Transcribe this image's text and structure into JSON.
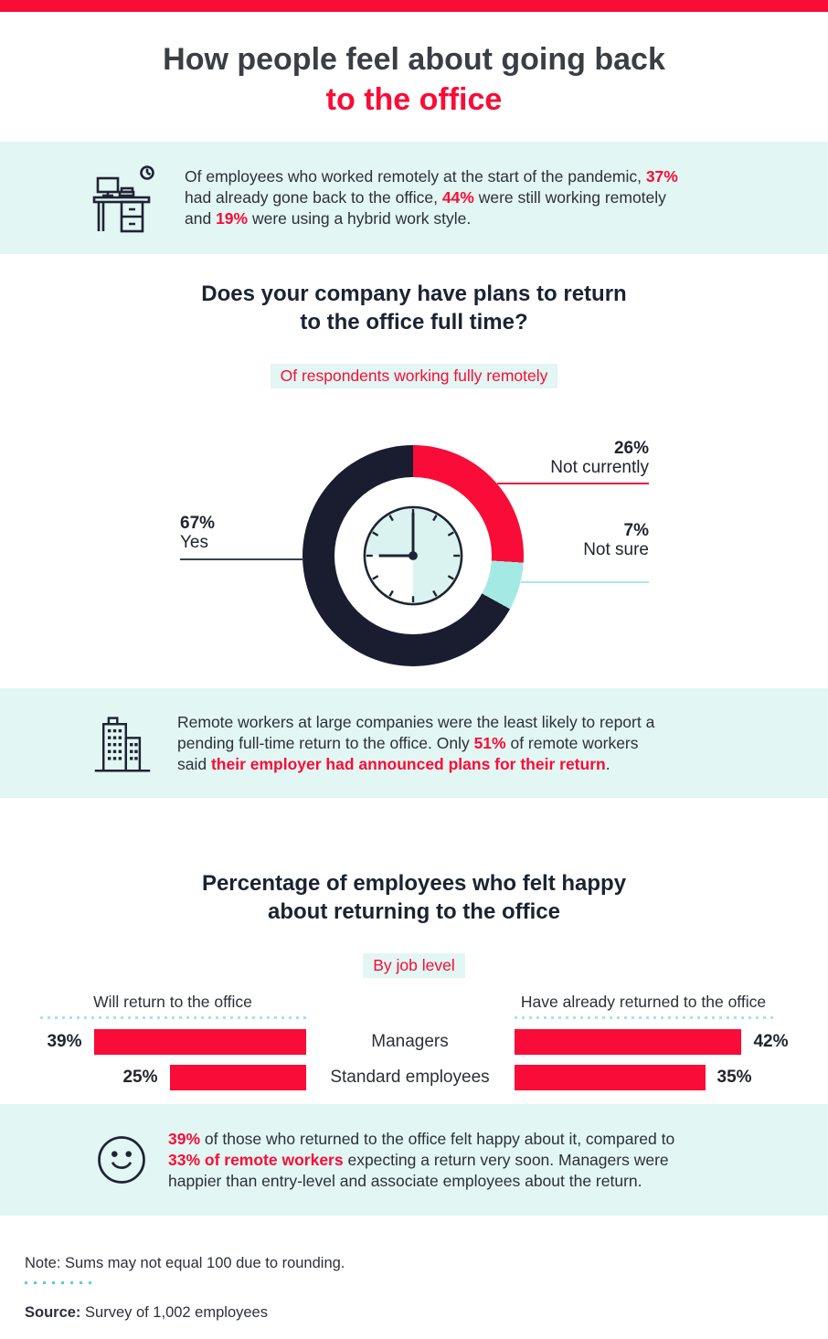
{
  "header": {
    "title_line1": "How people feel about going back",
    "title_line2": "to the office"
  },
  "callouts": [
    {
      "icon": "desk-clock-icon",
      "segments": [
        {
          "t": "Of employees who worked remotely at the start of the pandemic, "
        },
        {
          "t": "37%",
          "red": true
        },
        {
          "br": true
        },
        {
          "t": "had already gone back to the office, "
        },
        {
          "t": "44%",
          "red": true
        },
        {
          "t": " were still working remotely"
        },
        {
          "br": true
        },
        {
          "t": "and "
        },
        {
          "t": "19%",
          "red": true
        },
        {
          "t": " were using a hybrid work style."
        }
      ]
    },
    {
      "icon": "building-icon",
      "segments": [
        {
          "t": "Remote workers at large companies were the least likely to report a"
        },
        {
          "br": true
        },
        {
          "t": "pending full-time return to the office. Only "
        },
        {
          "t": "51%",
          "red": true
        },
        {
          "t": " of remote workers"
        },
        {
          "br": true
        },
        {
          "t": "said "
        },
        {
          "t": "their employer had announced plans for their return",
          "red": true
        },
        {
          "t": "."
        }
      ]
    },
    {
      "icon": "smiley-icon",
      "segments": [
        {
          "t": "39%",
          "red": true
        },
        {
          "t": " of those who returned to the office felt happy about it, compared to"
        },
        {
          "br": true
        },
        {
          "t": "33% of remote workers",
          "red": true
        },
        {
          "t": " expecting a return very soon. Managers were"
        },
        {
          "br": true
        },
        {
          "t": "happier than entry-level and associate employees about the return."
        }
      ]
    }
  ],
  "sections": {
    "donut": {
      "heading_line1": "Does your company have plans to return",
      "heading_line2": "to the office full time?",
      "subtitle": "Of respondents working fully remotely"
    },
    "bars": {
      "heading_line1": "Percentage of employees who felt happy",
      "heading_line2": "about returning to the office",
      "subtitle": "By job level"
    }
  },
  "chart_data": [
    {
      "type": "pie",
      "style": "donut",
      "title": "Does your company have plans to return to the office full time?",
      "subtitle": "Of respondents working fully remotely",
      "center_icon": "clock",
      "slices": [
        {
          "label": "Not currently",
          "value": 26,
          "display": "26%",
          "color": "#f90c37"
        },
        {
          "label": "Not sure",
          "value": 7,
          "display": "7%",
          "color": "#a5e9e4"
        },
        {
          "label": "Yes",
          "value": 67,
          "display": "67%",
          "color": "#191d2f"
        }
      ]
    },
    {
      "type": "bar",
      "orientation": "horizontal",
      "categories": [
        "Managers",
        "Standard employees"
      ],
      "series": [
        {
          "name": "Will return to the office",
          "values": [
            39,
            25
          ],
          "displays": [
            "39%",
            "25%"
          ]
        },
        {
          "name": "Have already returned to the office",
          "values": [
            42,
            35
          ],
          "displays": [
            "42%",
            "35%"
          ]
        }
      ],
      "unit": "%",
      "bar_color": "#f90c37"
    }
  ],
  "footer": {
    "note": "Note: Sums may not equal 100 due to rounding.",
    "source_label": "Source:",
    "source_text": " Survey of 1,002 employees"
  },
  "colors": {
    "accent_red": "#f90c37",
    "dark_navy": "#191d2f",
    "band_teal": "#e2f6f3",
    "light_teal": "#a5e9e4",
    "clock_face": "#dbf3f0"
  }
}
